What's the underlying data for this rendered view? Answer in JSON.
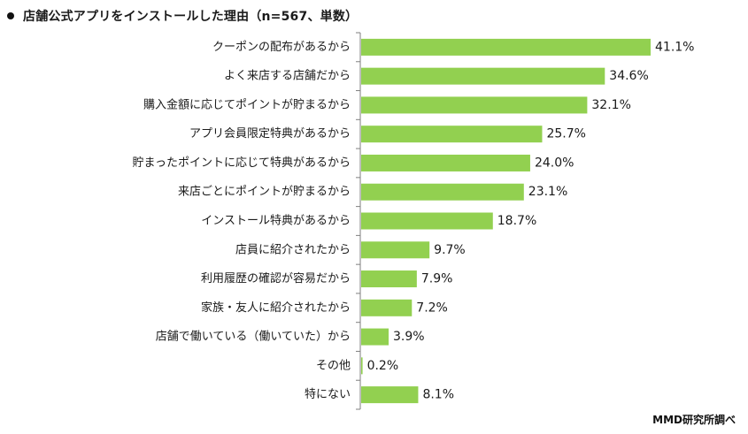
{
  "title": "店舗公式アプリをインストールした理由（n=567、単数）",
  "source": "MMD研究所調べ",
  "colors": {
    "bar": "#92d050",
    "axis": "#7f7f7f",
    "text": "#1a1a1a"
  },
  "chart_data": {
    "type": "bar",
    "orientation": "horizontal",
    "title": "店舗公式アプリをインストールした理由（n=567、単数）",
    "xlabel": "",
    "ylabel": "",
    "xlim": [
      0,
      41.1
    ],
    "grid": false,
    "legend": "none",
    "value_suffix": "%",
    "categories": [
      "クーポンの配布があるから",
      "よく来店する店舗だから",
      "購入金額に応じてポイントが貯まるから",
      "アプリ会員限定特典があるから",
      "貯まったポイントに応じて特典があるから",
      "来店ごとにポイントが貯まるから",
      "インストール特典があるから",
      "店員に紹介されたから",
      "利用履歴の確認が容易だから",
      "家族・友人に紹介されたから",
      "店舗で働いている（働いていた）から",
      "その他",
      "特にない"
    ],
    "values": [
      41.1,
      34.6,
      32.1,
      25.7,
      24.0,
      23.1,
      18.7,
      9.7,
      7.9,
      7.2,
      3.9,
      0.2,
      8.1
    ],
    "value_labels": [
      "41.1%",
      "34.6%",
      "32.1%",
      "25.7%",
      "24.0%",
      "23.1%",
      "18.7%",
      "9.7%",
      "7.9%",
      "7.2%",
      "3.9%",
      "0.2%",
      "8.1%"
    ]
  }
}
